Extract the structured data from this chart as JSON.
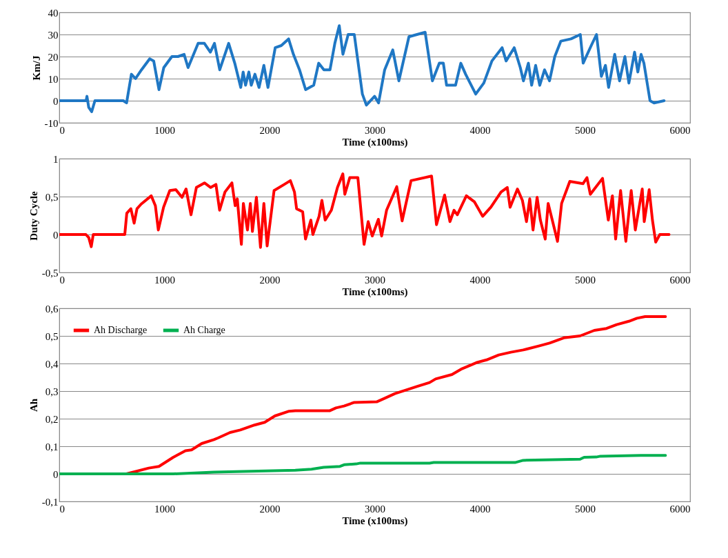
{
  "chart_data": [
    {
      "type": "line",
      "xlabel": "Time (x100ms)",
      "ylabel": "Km/J",
      "xlim": [
        0,
        6000
      ],
      "xticks": [
        0,
        1000,
        2000,
        3000,
        4000,
        5000,
        6000
      ],
      "ylim": [
        -10,
        40
      ],
      "yticks": [
        -10,
        0,
        10,
        20,
        30,
        40
      ],
      "grid": "y",
      "series": [
        {
          "color": "#1f77c4",
          "x": [
            0,
            255,
            263,
            280,
            308,
            339,
            609,
            640,
            686,
            725,
            782,
            860,
            898,
            948,
            994,
            1071,
            1129,
            1187,
            1225,
            1321,
            1380,
            1437,
            1476,
            1526,
            1611,
            1669,
            1726,
            1749,
            1772,
            1803,
            1826,
            1861,
            1900,
            1946,
            1985,
            2054,
            2112,
            2181,
            2227,
            2285,
            2343,
            2420,
            2467,
            2517,
            2575,
            2621,
            2663,
            2698,
            2748,
            2806,
            2883,
            2921,
            2999,
            3037,
            3095,
            3172,
            3230,
            3326,
            3480,
            3549,
            3615,
            3653,
            3684,
            3769,
            3819,
            3865,
            3961,
            4038,
            4115,
            4212,
            4250,
            4327,
            4385,
            4415,
            4462,
            4493,
            4531,
            4570,
            4616,
            4663,
            4713,
            4771,
            4867,
            4956,
            4983,
            5060,
            5110,
            5156,
            5195,
            5225,
            5283,
            5329,
            5380,
            5418,
            5472,
            5503,
            5534,
            5561,
            5619,
            5657,
            5753
          ],
          "values": [
            0,
            0,
            2,
            -3,
            -5,
            0,
            0,
            -1,
            12,
            10,
            14,
            19,
            18,
            5,
            15,
            20,
            20,
            21,
            15,
            26,
            26,
            22,
            26,
            14,
            26,
            17,
            6,
            13,
            7,
            13,
            7,
            12,
            6,
            16,
            6,
            24,
            25,
            28,
            21,
            14,
            5,
            7,
            17,
            14,
            14,
            26,
            34,
            21,
            30,
            30,
            3,
            -2,
            2,
            -1,
            14,
            23,
            9,
            29,
            31,
            9,
            17,
            17,
            7,
            7,
            17,
            12,
            3,
            8,
            18,
            24,
            18,
            24,
            15,
            9,
            17,
            7,
            16,
            7,
            14,
            9,
            20,
            27,
            28,
            30,
            17,
            25,
            30,
            11,
            16,
            6,
            21,
            9,
            20,
            8,
            22,
            13,
            21,
            17,
            0,
            -1,
            0
          ]
        }
      ]
    },
    {
      "type": "line",
      "xlabel": "Time (x100ms)",
      "ylabel": "Duty Cycle",
      "xlim": [
        0,
        6000
      ],
      "xticks": [
        0,
        1000,
        2000,
        3000,
        4000,
        5000,
        6000
      ],
      "ylim": [
        -0.5,
        1
      ],
      "yticks": [
        {
          "value": -0.5,
          "label": "-0,5"
        },
        0,
        {
          "value": 0.5,
          "label": "0,5"
        },
        1
      ],
      "grid": "y",
      "series": [
        {
          "color": "#ff0000",
          "x": [
            0,
            253,
            280,
            304,
            323,
            623,
            642,
            681,
            712,
            739,
            778,
            875,
            914,
            942,
            992,
            1051,
            1109,
            1167,
            1206,
            1253,
            1304,
            1381,
            1440,
            1490,
            1525,
            1576,
            1642,
            1673,
            1693,
            1732,
            1751,
            1790,
            1817,
            1837,
            1875,
            1914,
            1946,
            1977,
            2043,
            2140,
            2198,
            2237,
            2257,
            2315,
            2342,
            2393,
            2412,
            2471,
            2498,
            2529,
            2588,
            2646,
            2697,
            2716,
            2763,
            2840,
            2899,
            2938,
            2977,
            3035,
            3066,
            3113,
            3210,
            3261,
            3346,
            3541,
            3588,
            3665,
            3716,
            3755,
            3786,
            3872,
            3949,
            4027,
            4105,
            4202,
            4261,
            4288,
            4358,
            4405,
            4444,
            4475,
            4506,
            4545,
            4576,
            4622,
            4650,
            4700,
            4739,
            4778,
            4856,
            4981,
            5019,
            5051,
            5167,
            5222,
            5261,
            5292,
            5339,
            5389,
            5440,
            5479,
            5545,
            5564,
            5611,
            5642,
            5673,
            5712,
            5800
          ],
          "values": [
            0,
            0,
            -0.04,
            -0.16,
            0,
            0,
            0.28,
            0.34,
            0.15,
            0.34,
            0.4,
            0.51,
            0.38,
            0.06,
            0.36,
            0.58,
            0.59,
            0.49,
            0.6,
            0.26,
            0.62,
            0.68,
            0.62,
            0.66,
            0.32,
            0.56,
            0.68,
            0.38,
            0.47,
            -0.13,
            0.41,
            0.06,
            0.41,
            0.04,
            0.49,
            -0.17,
            0.41,
            -0.15,
            0.58,
            0.66,
            0.71,
            0.56,
            0.34,
            0.3,
            -0.06,
            0.19,
            0,
            0.24,
            0.45,
            0.19,
            0.32,
            0.62,
            0.8,
            0.53,
            0.75,
            0.75,
            -0.13,
            0.17,
            -0.02,
            0.2,
            -0.02,
            0.32,
            0.63,
            0.18,
            0.71,
            0.77,
            0.13,
            0.52,
            0.17,
            0.32,
            0.26,
            0.51,
            0.43,
            0.24,
            0.36,
            0.56,
            0.62,
            0.36,
            0.6,
            0.45,
            0.17,
            0.47,
            0.06,
            0.49,
            0.19,
            -0.06,
            0.41,
            0.13,
            -0.09,
            0.41,
            0.7,
            0.67,
            0.75,
            0.53,
            0.74,
            0.19,
            0.51,
            -0.06,
            0.58,
            -0.09,
            0.58,
            0.06,
            0.6,
            0.17,
            0.59,
            0.19,
            -0.1,
            0,
            0
          ]
        }
      ]
    },
    {
      "type": "line",
      "xlabel": "Time (x100ms)",
      "ylabel": "Ah",
      "xlim": [
        0,
        6000
      ],
      "xticks": [
        0,
        1000,
        2000,
        3000,
        4000,
        5000,
        6000
      ],
      "ylim": [
        -0.1,
        0.6
      ],
      "yticks": [
        {
          "value": -0.1,
          "label": "-0,1"
        },
        0,
        {
          "value": 0.1,
          "label": "0,1"
        },
        {
          "value": 0.2,
          "label": "0,2"
        },
        {
          "value": 0.3,
          "label": "0,3"
        },
        {
          "value": 0.4,
          "label": "0,4"
        },
        {
          "value": 0.5,
          "label": "0,5"
        },
        {
          "value": 0.6,
          "label": "0,6"
        }
      ],
      "grid": "y",
      "legend": "top left",
      "series": [
        {
          "name": "Ah Discharge",
          "color": "#ff0000",
          "x": [
            0,
            639,
            851,
            948,
            1084,
            1200,
            1258,
            1355,
            1471,
            1509,
            1625,
            1722,
            1857,
            1954,
            2051,
            2186,
            2245,
            2574,
            2632,
            2709,
            2806,
            3019,
            3096,
            3193,
            3290,
            3406,
            3522,
            3580,
            3735,
            3831,
            3967,
            4064,
            4180,
            4296,
            4412,
            4567,
            4664,
            4799,
            4954,
            5089,
            5205,
            5302,
            5418,
            5495,
            5572,
            5766
          ],
          "values": [
            0,
            0,
            0.021,
            0.027,
            0.06,
            0.084,
            0.087,
            0.11,
            0.124,
            0.13,
            0.15,
            0.159,
            0.177,
            0.187,
            0.21,
            0.227,
            0.229,
            0.229,
            0.239,
            0.246,
            0.259,
            0.261,
            0.274,
            0.291,
            0.303,
            0.317,
            0.331,
            0.344,
            0.36,
            0.381,
            0.403,
            0.413,
            0.431,
            0.441,
            0.449,
            0.464,
            0.474,
            0.493,
            0.5,
            0.52,
            0.527,
            0.541,
            0.553,
            0.564,
            0.57,
            0.57
          ]
        },
        {
          "name": "Ah Charge",
          "color": "#00b050",
          "x": [
            0,
            1084,
            1471,
            2245,
            2399,
            2515,
            2670,
            2709,
            2825,
            2864,
            3522,
            3561,
            4335,
            4412,
            4954,
            4992,
            5108,
            5147,
            5534,
            5611,
            5766
          ],
          "values": [
            0,
            0,
            0.006,
            0.013,
            0.017,
            0.024,
            0.027,
            0.033,
            0.036,
            0.039,
            0.039,
            0.041,
            0.041,
            0.049,
            0.053,
            0.06,
            0.061,
            0.064,
            0.067,
            0.067,
            0.067
          ]
        }
      ]
    }
  ]
}
